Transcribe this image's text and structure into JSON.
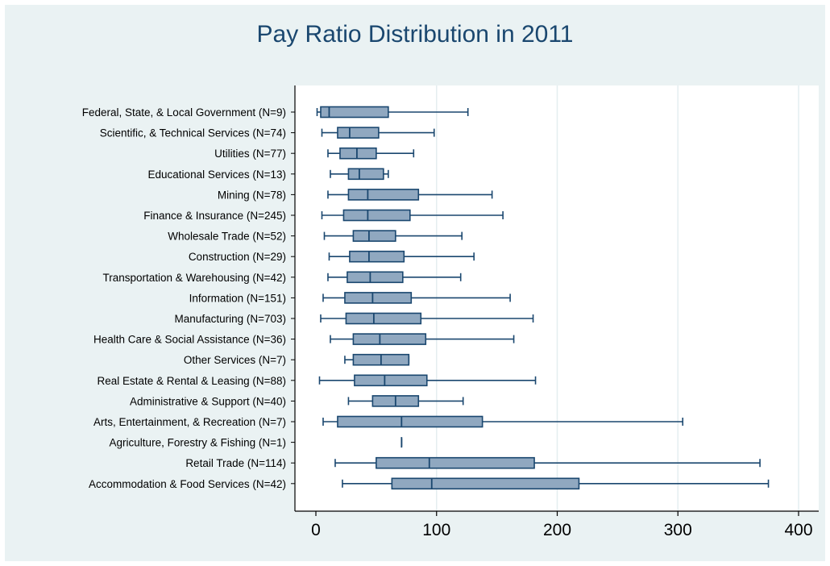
{
  "chart_data": {
    "type": "boxplot",
    "orientation": "horizontal",
    "title": "Pay Ratio Distribution in 2011",
    "xlabel": "",
    "ylabel": "",
    "xlim": [
      0,
      410
    ],
    "xticks": [
      0,
      100,
      200,
      300,
      400
    ],
    "xtick_labels": [
      "0",
      "100",
      "200",
      "300",
      "400"
    ],
    "grid": "vertical",
    "colors": {
      "background": "#eaf2f3",
      "plot_background": "#ffffff",
      "box_fill": "#90a8c0",
      "box_stroke": "#1a476f",
      "gridline": "#e4eef0",
      "title": "#1a476f"
    },
    "categories": [
      {
        "label": "Federal, State, & Local Government (N=9)",
        "min": 1,
        "q1": 4,
        "median": 11,
        "q3": 60,
        "max": 126
      },
      {
        "label": "Scientific, & Technical Services (N=74)",
        "min": 5,
        "q1": 18,
        "median": 28,
        "q3": 52,
        "max": 98
      },
      {
        "label": "Utilities (N=77)",
        "min": 10,
        "q1": 20,
        "median": 34,
        "q3": 50,
        "max": 81
      },
      {
        "label": "Educational Services (N=13)",
        "min": 12,
        "q1": 27,
        "median": 36,
        "q3": 56,
        "max": 60
      },
      {
        "label": "Mining (N=78)",
        "min": 10,
        "q1": 27,
        "median": 43,
        "q3": 85,
        "max": 146
      },
      {
        "label": "Finance & Insurance (N=245)",
        "min": 5,
        "q1": 23,
        "median": 43,
        "q3": 78,
        "max": 155
      },
      {
        "label": "Wholesale Trade (N=52)",
        "min": 7,
        "q1": 31,
        "median": 44,
        "q3": 66,
        "max": 121
      },
      {
        "label": "Construction (N=29)",
        "min": 11,
        "q1": 28,
        "median": 44,
        "q3": 73,
        "max": 131
      },
      {
        "label": "Transportation & Warehousing (N=42)",
        "min": 10,
        "q1": 26,
        "median": 45,
        "q3": 72,
        "max": 120
      },
      {
        "label": "Information (N=151)",
        "min": 6,
        "q1": 24,
        "median": 47,
        "q3": 79,
        "max": 161
      },
      {
        "label": "Manufacturing (N=703)",
        "min": 4,
        "q1": 25,
        "median": 48,
        "q3": 87,
        "max": 180
      },
      {
        "label": "Health Care & Social Assistance (N=36)",
        "min": 12,
        "q1": 31,
        "median": 53,
        "q3": 91,
        "max": 164
      },
      {
        "label": "Other Services (N=7)",
        "min": 24,
        "q1": 31,
        "median": 54,
        "q3": 77,
        "max": 77
      },
      {
        "label": "Real Estate & Rental & Leasing (N=88)",
        "min": 3,
        "q1": 32,
        "median": 57,
        "q3": 92,
        "max": 182
      },
      {
        "label": "Administrative & Support (N=40)",
        "min": 27,
        "q1": 47,
        "median": 66,
        "q3": 85,
        "max": 122
      },
      {
        "label": "Arts, Entertainment, & Recreation (N=7)",
        "min": 6,
        "q1": 18,
        "median": 71,
        "q3": 138,
        "max": 304
      },
      {
        "label": "Agriculture, Forestry & Fishing (N=1)",
        "min": 71,
        "q1": 71,
        "median": 71,
        "q3": 71,
        "max": 71
      },
      {
        "label": "Retail Trade (N=114)",
        "min": 16,
        "q1": 50,
        "median": 94,
        "q3": 181,
        "max": 368
      },
      {
        "label": "Accommodation & Food Services (N=42)",
        "min": 22,
        "q1": 63,
        "median": 96,
        "q3": 218,
        "max": 375
      }
    ]
  }
}
